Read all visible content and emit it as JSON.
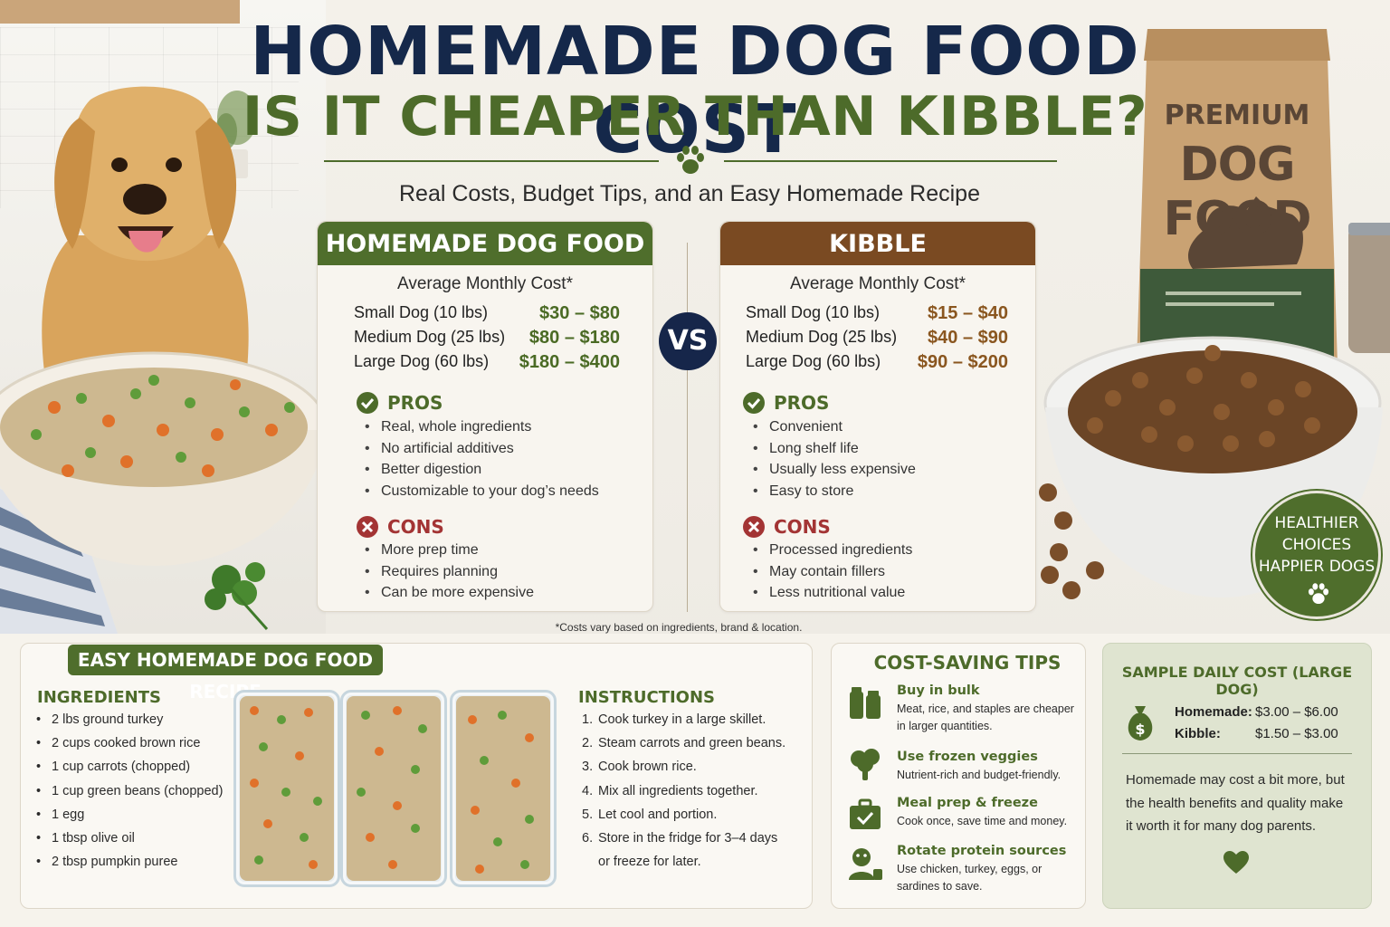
{
  "title": {
    "main": "HOMEMADE DOG FOOD COST",
    "sub": "IS IT CHEAPER THAN KIBBLE?",
    "tagline": "Real Costs, Budget Tips, and an Easy Homemade Recipe"
  },
  "bag": {
    "line1": "PREMIUM",
    "line2": "DOG FOOD"
  },
  "vs_label": "VS",
  "homemade": {
    "header": "HOMEMADE DOG FOOD",
    "avg_label": "Average Monthly Cost*",
    "costs": [
      {
        "label": "Small Dog (10 lbs)",
        "value": "$30 – $80"
      },
      {
        "label": "Medium Dog (25 lbs)",
        "value": "$80 – $180"
      },
      {
        "label": "Large Dog (60 lbs)",
        "value": "$180 – $400"
      }
    ],
    "pros_label": "PROS",
    "pros": [
      "Real, whole ingredients",
      "No artificial additives",
      "Better digestion",
      "Customizable to your dog’s needs"
    ],
    "cons_label": "CONS",
    "cons": [
      "More prep time",
      "Requires planning",
      "Can be more expensive"
    ]
  },
  "kibble": {
    "header": "KIBBLE",
    "avg_label": "Average Monthly Cost*",
    "costs": [
      {
        "label": "Small Dog (10 lbs)",
        "value": "$15 – $40"
      },
      {
        "label": "Medium Dog (25 lbs)",
        "value": "$40 – $90"
      },
      {
        "label": "Large Dog (60 lbs)",
        "value": "$90 – $200"
      }
    ],
    "pros_label": "PROS",
    "pros": [
      "Convenient",
      "Long shelf life",
      "Usually less expensive",
      "Easy to store"
    ],
    "cons_label": "CONS",
    "cons": [
      "Processed ingredients",
      "May contain fillers",
      "Less nutritional value"
    ]
  },
  "footnote": "*Costs vary based on ingredients, brand & location.",
  "badge": {
    "line1": "HEALTHIER",
    "line2": "CHOICES",
    "line3": "HAPPIER DOGS"
  },
  "recipe": {
    "header": "EASY HOMEMADE DOG FOOD RECIPE",
    "ingredients_label": "INGREDIENTS",
    "ingredients": [
      "2 lbs ground turkey",
      "2 cups cooked brown rice",
      "1 cup carrots (chopped)",
      "1 cup green beans (chopped)",
      "1 egg",
      "1 tbsp olive oil",
      "2 tbsp pumpkin puree"
    ],
    "instructions_label": "INSTRUCTIONS",
    "instructions": [
      {
        "num": "1.",
        "text": "Cook turkey in a large skillet."
      },
      {
        "num": "2.",
        "text": "Steam carrots and green beans."
      },
      {
        "num": "3.",
        "text": "Cook brown rice."
      },
      {
        "num": "4.",
        "text": "Mix all ingredients together."
      },
      {
        "num": "5.",
        "text": "Let cool and portion."
      },
      {
        "num": "6.",
        "text": "Store in the fridge for 3–4 days"
      },
      {
        "num": "",
        "text": "or freeze for later."
      }
    ]
  },
  "tips": {
    "header": "COST-SAVING TIPS",
    "items": [
      {
        "icon": "jars-icon",
        "title": "Buy in bulk",
        "desc": "Meat, rice, and staples are cheaper in larger quantities."
      },
      {
        "icon": "broccoli-icon",
        "title": "Use frozen veggies",
        "desc": "Nutrient-rich and budget-friendly."
      },
      {
        "icon": "meal-prep-container-icon",
        "title": "Meal prep & freeze",
        "desc": "Cook once, save time and money."
      },
      {
        "icon": "rotate-protein-icon",
        "title": "Rotate protein sources",
        "desc": "Use chicken, turkey, eggs, or sardines to save."
      }
    ]
  },
  "daily": {
    "header": "SAMPLE DAILY COST (LARGE DOG)",
    "rows": [
      {
        "label": "Homemade:",
        "value": "$3.00 – $6.00"
      },
      {
        "label": "Kibble:",
        "value": "$1.50 – $3.00"
      }
    ],
    "text": "Homemade may cost a bit more, but the health benefits and quality make it worth it for many dog parents."
  },
  "colors": {
    "navy": "#15284a",
    "green": "#4f6e2c",
    "brown": "#7a4a22",
    "red": "#a33434"
  }
}
